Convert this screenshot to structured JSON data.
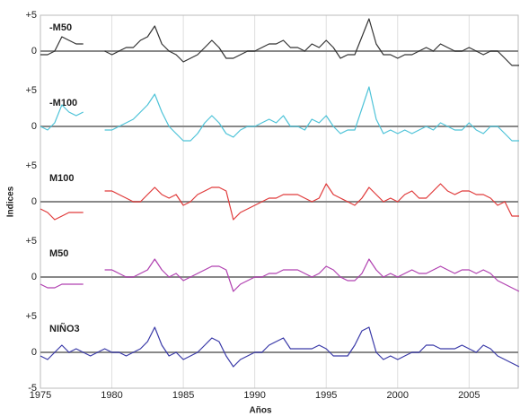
{
  "chart_data": {
    "type": "line",
    "xlabel": "Años",
    "ylabel": "Indices",
    "xlim": [
      1975,
      2008.5
    ],
    "xticks": [
      1975,
      1980,
      1985,
      1990,
      1995,
      2000,
      2005
    ],
    "grid": true,
    "zero_line": true,
    "x": [
      1975,
      1975.5,
      1976,
      1976.5,
      1977,
      1977.5,
      1978,
      1978.5,
      1979,
      1979.5,
      1980,
      1980.5,
      1981,
      1981.5,
      1982,
      1982.5,
      1983,
      1983.5,
      1984,
      1984.5,
      1985,
      1985.5,
      1986,
      1986.5,
      1987,
      1987.5,
      1988,
      1988.5,
      1989,
      1989.5,
      1990,
      1990.5,
      1991,
      1991.5,
      1992,
      1992.5,
      1993,
      1993.5,
      1994,
      1994.5,
      1995,
      1995.5,
      1996,
      1996.5,
      1997,
      1997.5,
      1998,
      1998.5,
      1999,
      1999.5,
      2000,
      2000.5,
      2001,
      2001.5,
      2002,
      2002.5,
      2003,
      2003.5,
      2004,
      2004.5,
      2005,
      2005.5,
      2006,
      2006.5,
      2007,
      2007.5,
      2008,
      2008.5
    ],
    "series": [
      {
        "name": "-M50",
        "color": "#333333",
        "ylim": [
          -5.5,
          5
        ],
        "yticks": [
          {
            "value": 5,
            "label": "+5"
          },
          0
        ],
        "values": [
          -0.5,
          -0.5,
          0,
          2,
          1.5,
          1,
          1,
          null,
          null,
          0,
          -0.5,
          0,
          0.5,
          0.5,
          1.5,
          2,
          3.5,
          1,
          0,
          -0.5,
          -1.5,
          -1,
          -0.5,
          0.5,
          1.5,
          0.5,
          -1,
          -1,
          -0.5,
          0,
          0,
          0.5,
          1,
          1,
          1.5,
          0.5,
          0.5,
          0,
          1,
          0.5,
          1.5,
          0.5,
          -1,
          -0.5,
          -0.5,
          2,
          4.5,
          1,
          -0.5,
          -0.5,
          -1,
          -0.5,
          -0.5,
          0,
          0.5,
          0,
          1,
          0.5,
          0,
          0,
          0.5,
          0,
          -0.5,
          0,
          0,
          -1,
          -2,
          -2
        ]
      },
      {
        "name": "-M100",
        "color": "#4ec3d8",
        "ylim": [
          -5.5,
          5
        ],
        "yticks": [
          {
            "value": 5,
            "label": "+5"
          },
          0
        ],
        "values": [
          0,
          -0.5,
          0.5,
          3,
          2,
          1.5,
          2,
          null,
          null,
          -0.5,
          -0.5,
          0,
          0.5,
          1,
          2,
          3,
          4.5,
          2,
          0,
          -1,
          -2,
          -2,
          -1,
          0.5,
          1.5,
          0.5,
          -1,
          -1.5,
          -0.5,
          0,
          0,
          0.5,
          1,
          0.5,
          1.5,
          0,
          0,
          -0.5,
          1,
          0.5,
          1.5,
          0,
          -1,
          -0.5,
          -0.5,
          2.5,
          5.5,
          1,
          -1,
          -0.5,
          -1,
          -0.5,
          -1,
          -0.5,
          0,
          -0.5,
          0.5,
          0,
          -0.5,
          -0.5,
          0.5,
          -0.5,
          -1,
          0,
          0,
          -1,
          -2,
          -2
        ]
      },
      {
        "name": "M100",
        "color": "#e03a3a",
        "ylim": [
          -5.5,
          5
        ],
        "yticks": [
          {
            "value": 5,
            "label": "+5"
          },
          0
        ],
        "values": [
          -1,
          -1.5,
          -2.5,
          -2,
          -1.5,
          -1.5,
          -1.5,
          null,
          null,
          1.5,
          1.5,
          1,
          0.5,
          0,
          0,
          1,
          2,
          1,
          0.5,
          1,
          -0.5,
          0,
          1,
          1.5,
          2,
          2,
          1.5,
          -2.5,
          -1.5,
          -1,
          -0.5,
          0,
          0.5,
          0.5,
          1,
          1,
          1,
          0.5,
          0,
          0.5,
          2.5,
          1,
          0.5,
          0,
          -0.5,
          0.5,
          2,
          1,
          0,
          0.5,
          0,
          1,
          1.5,
          0.5,
          0.5,
          1.5,
          2.5,
          1.5,
          1,
          1.5,
          1.5,
          1,
          1,
          0.5,
          -0.5,
          0,
          -2,
          -2
        ]
      },
      {
        "name": "M50",
        "color": "#b040b0",
        "ylim": [
          -5.5,
          5
        ],
        "yticks": [
          {
            "value": 5,
            "label": "+5"
          },
          0
        ],
        "values": [
          -1,
          -1.5,
          -1.5,
          -1,
          -1,
          -1,
          -1,
          null,
          null,
          1,
          1,
          0.5,
          0,
          0,
          0.5,
          1,
          2.5,
          1,
          0,
          0.5,
          -0.5,
          0,
          0.5,
          1,
          1.5,
          1.5,
          1,
          -2,
          -1,
          -0.5,
          0,
          0,
          0.5,
          0.5,
          1,
          1,
          1,
          0.5,
          0,
          0.5,
          1.5,
          1,
          0,
          -0.5,
          -0.5,
          0.5,
          2.5,
          1,
          0,
          0.5,
          0,
          0.5,
          1,
          0.5,
          0.5,
          1,
          1.5,
          1,
          0.5,
          1,
          1,
          0.5,
          1,
          0.5,
          -0.5,
          -1,
          -1.5,
          -2
        ]
      },
      {
        "name": "NIÑO3",
        "color": "#3a3aa8",
        "ylim": [
          -5,
          5
        ],
        "yticks": [
          -5,
          0,
          {
            "value": 5,
            "label": "+5"
          }
        ],
        "values": [
          -0.5,
          -1,
          0,
          1,
          0,
          0.5,
          0,
          -0.5,
          0,
          0.5,
          0,
          0,
          -0.5,
          0,
          0.5,
          1.5,
          3.5,
          1,
          -0.5,
          0,
          -1,
          -0.5,
          0,
          1,
          2,
          1.5,
          -0.5,
          -2,
          -1,
          -0.5,
          0,
          0,
          1,
          1.5,
          2,
          0.5,
          0.5,
          0.5,
          0.5,
          1,
          0.5,
          -0.5,
          -0.5,
          -0.5,
          1,
          3,
          3.5,
          0,
          -1,
          -0.5,
          -1,
          -0.5,
          0,
          0,
          1,
          1,
          0.5,
          0.5,
          0.5,
          1,
          0.5,
          0,
          1,
          0.5,
          -0.5,
          -1,
          -1.5,
          -2
        ]
      }
    ]
  }
}
